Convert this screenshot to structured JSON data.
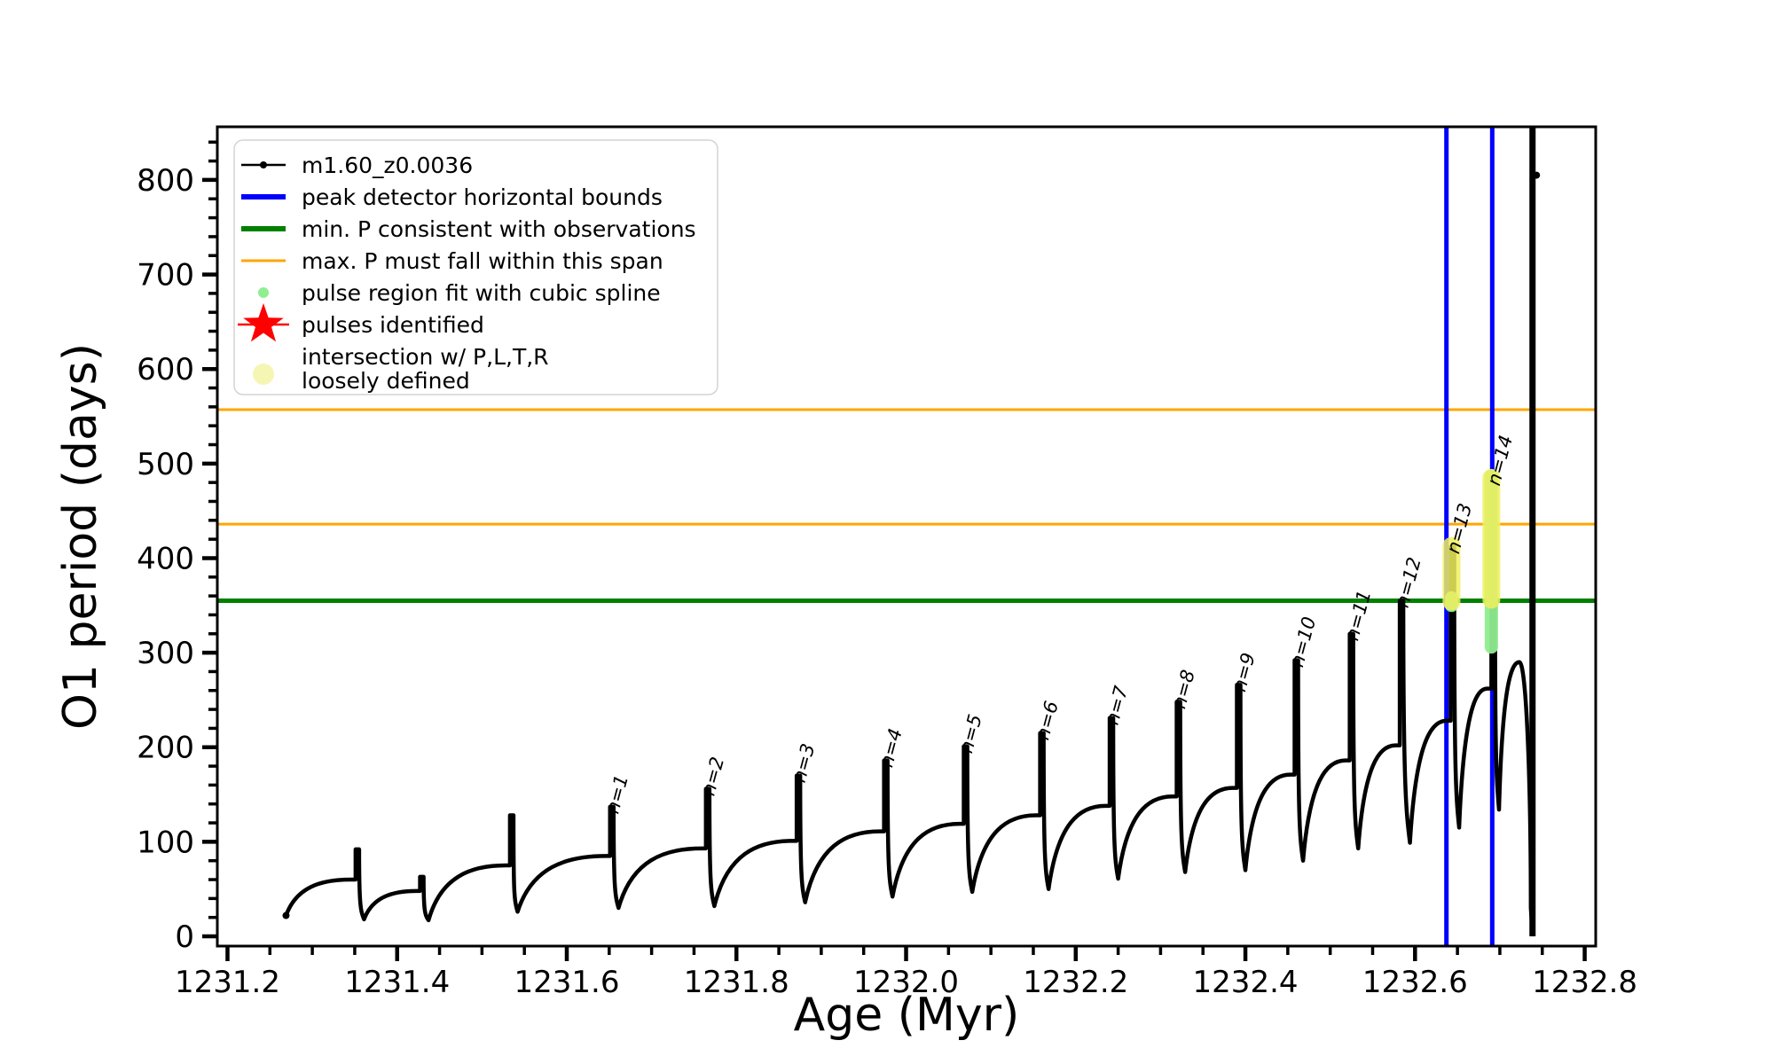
{
  "figure": {
    "background": "#ffffff"
  },
  "chart_data": {
    "type": "line",
    "title": "",
    "xlabel": "Age (Myr)",
    "ylabel": "O1 period (days)",
    "xlim": [
      1231.188,
      1232.813
    ],
    "ylim": [
      -10.3,
      856.2
    ],
    "x_major_ticks": [
      1231.2,
      1231.4,
      1231.6,
      1231.8,
      1232.0,
      1232.2,
      1232.4,
      1232.6,
      1232.8
    ],
    "x_tick_labels": [
      "1231.2",
      "1231.4",
      "1231.6",
      "1231.8",
      "1232.0",
      "1232.2",
      "1232.4",
      "1232.6",
      "1232.8"
    ],
    "x_minor_step": 0.05,
    "y_major_ticks": [
      0,
      100,
      200,
      300,
      400,
      500,
      600,
      700,
      800
    ],
    "y_tick_labels": [
      "0",
      "100",
      "200",
      "300",
      "400",
      "500",
      "600",
      "700",
      "800"
    ],
    "y_minor_step": 20,
    "grid": false,
    "legend_position": "upper left",
    "series_name": "m1.60_z0.0036",
    "colors": {
      "track": "#000000",
      "peak_bounds": "#0000ff",
      "min_p": "#008000",
      "max_p_span": "#ffa500",
      "spline_fit": "#90ee90",
      "pulses": "#ff0000",
      "intersection": "#f0f060"
    },
    "horizontal_lines": [
      {
        "name": "max-P-span-upper",
        "y": 557,
        "color": "#ffa500",
        "lw": 3
      },
      {
        "name": "max-P-span-lower",
        "y": 436,
        "color": "#ffa500",
        "lw": 3
      },
      {
        "name": "min-P-observed",
        "y": 355,
        "color": "#008000",
        "lw": 5
      }
    ],
    "vertical_lines": [
      {
        "name": "peak-detector-left",
        "x": 1232.637,
        "color": "#0000ff",
        "lw": 5
      },
      {
        "name": "peak-detector-right",
        "x": 1232.691,
        "color": "#0000ff",
        "lw": 5
      }
    ],
    "track": {
      "start": [
        1231.269,
        22
      ],
      "cycles": [
        {
          "hump": [
            1231.345,
            60
          ],
          "spike_x": 1231.351,
          "peak": 92,
          "dip": [
            1231.361,
            18
          ],
          "label": ""
        },
        {
          "hump": [
            1231.423,
            48
          ],
          "spike_x": 1231.427,
          "peak": 63,
          "dip": [
            1231.437,
            17
          ],
          "label": ""
        },
        {
          "hump": [
            1231.528,
            75
          ],
          "spike_x": 1231.533,
          "peak": 128,
          "dip": [
            1231.542,
            26
          ],
          "label": ""
        },
        {
          "hump": [
            1231.646,
            85
          ],
          "spike_x": 1231.651,
          "peak": 137,
          "dip": [
            1231.661,
            30
          ],
          "label": "n=1"
        },
        {
          "hump": [
            1231.759,
            93
          ],
          "spike_x": 1231.764,
          "peak": 156,
          "dip": [
            1231.774,
            32
          ],
          "label": "n=2"
        },
        {
          "hump": [
            1231.866,
            101
          ],
          "spike_x": 1231.871,
          "peak": 170,
          "dip": [
            1231.881,
            36
          ],
          "label": "n=3"
        },
        {
          "hump": [
            1231.969,
            111
          ],
          "spike_x": 1231.974,
          "peak": 186,
          "dip": [
            1231.984,
            42
          ],
          "label": "n=4"
        },
        {
          "hump": [
            1232.063,
            119
          ],
          "spike_x": 1232.068,
          "peak": 201,
          "dip": [
            1232.078,
            47
          ],
          "label": "n=5"
        },
        {
          "hump": [
            1232.153,
            128
          ],
          "spike_x": 1232.158,
          "peak": 215,
          "dip": [
            1232.168,
            50
          ],
          "label": "n=6"
        },
        {
          "hump": [
            1232.235,
            138
          ],
          "spike_x": 1232.24,
          "peak": 231,
          "dip": [
            1232.25,
            61
          ],
          "label": "n=7"
        },
        {
          "hump": [
            1232.314,
            148
          ],
          "spike_x": 1232.319,
          "peak": 248,
          "dip": [
            1232.329,
            68
          ],
          "label": "n=8"
        },
        {
          "hump": [
            1232.385,
            157
          ],
          "spike_x": 1232.39,
          "peak": 266,
          "dip": [
            1232.4,
            70
          ],
          "label": "n=9"
        },
        {
          "hump": [
            1232.453,
            171
          ],
          "spike_x": 1232.458,
          "peak": 292,
          "dip": [
            1232.468,
            80
          ],
          "label": "n=10"
        },
        {
          "hump": [
            1232.518,
            186
          ],
          "spike_x": 1232.523,
          "peak": 320,
          "dip": [
            1232.533,
            93
          ],
          "label": "n=11"
        },
        {
          "hump": [
            1232.577,
            202
          ],
          "spike_x": 1232.582,
          "peak": 355,
          "dip": [
            1232.594,
            99
          ],
          "label": "n=12"
        },
        {
          "hump": [
            1232.637,
            228
          ],
          "spike_x": 1232.642,
          "peak": 412,
          "dip": [
            1232.652,
            115
          ],
          "label": "n=13"
        },
        {
          "hump": [
            1232.685,
            262
          ],
          "spike_x": 1232.69,
          "peak": 484,
          "dip": [
            1232.699,
            134
          ],
          "label": "n=14"
        }
      ],
      "final_hump": [
        1232.723,
        290
      ],
      "final_drop": [
        1232.7365,
        30
      ],
      "end_line": {
        "x": 1232.7385,
        "v_from": 0,
        "v_to": 860,
        "lw": 7
      },
      "end_marker": {
        "x": 1232.739,
        "v": 805
      }
    },
    "overlays": [
      {
        "name": "spline-fit-n13",
        "x": 1232.643,
        "v_from": 350,
        "v_to": 358,
        "color": "#90ee90",
        "width": 15,
        "opacity": 0.95
      },
      {
        "name": "intersection-n13",
        "x": 1232.643,
        "v_from": 354,
        "v_to": 413,
        "color": "#f0f060",
        "width": 20,
        "opacity": 0.85
      },
      {
        "name": "spline-fit-n14",
        "x": 1232.69,
        "v_from": 306,
        "v_to": 487,
        "color": "#90ee90",
        "width": 15,
        "opacity": 0.95
      },
      {
        "name": "intersection-n14",
        "x": 1232.69,
        "v_from": 356,
        "v_to": 485,
        "color": "#f0f060",
        "width": 20,
        "opacity": 0.85
      }
    ],
    "legend": {
      "items": [
        {
          "handle": "line-dot",
          "color": "#000000",
          "lw": 2.5,
          "label_lines": [
            "m1.60_z0.0036"
          ]
        },
        {
          "handle": "line",
          "color": "#0000ff",
          "lw": 6,
          "label_lines": [
            "peak detector horizontal bounds"
          ]
        },
        {
          "handle": "line",
          "color": "#008000",
          "lw": 6,
          "label_lines": [
            "min. P consistent with observations"
          ]
        },
        {
          "handle": "line",
          "color": "#ffa500",
          "lw": 3,
          "label_lines": [
            "max. P must fall within this span"
          ]
        },
        {
          "handle": "dot",
          "color": "#90ee90",
          "r": 6,
          "label_lines": [
            "pulse region fit with cubic spline"
          ]
        },
        {
          "handle": "star-line",
          "color": "#ff0000",
          "label_lines": [
            "pulses identified"
          ]
        },
        {
          "handle": "big-dot",
          "color": "#f6f6b4",
          "r": 12,
          "label_lines": [
            "intersection w/ P,L,T,R",
            "loosely defined"
          ]
        }
      ]
    }
  }
}
